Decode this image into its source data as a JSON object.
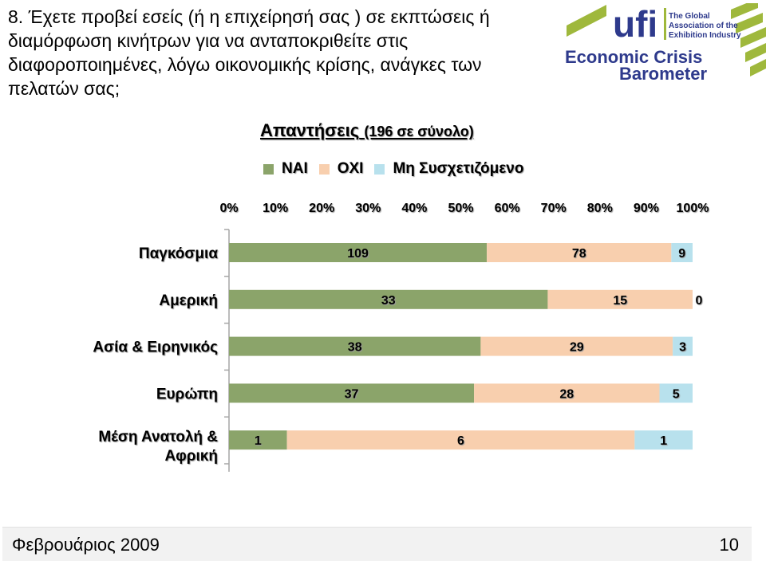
{
  "question": "8. Έχετε προβεί εσείς (ή η επιχείρησή σας ) σε εκπτώσεις ή διαμόρφωση κινήτρων για να ανταποκριθείτε στις διαφοροποιημένες, λόγω οικονομικής κρίσης, ανάγκες των πελατών σας;",
  "logo": {
    "ufi": "ufi",
    "tagline_1": "The Global",
    "tagline_2": "Association of the",
    "tagline_3": "Exhibition Industry",
    "line_1": "Economic Crisis",
    "line_2": "Barometer"
  },
  "chart_title": {
    "main": "Απαντήσεις",
    "sub": "(196 σε σύνολο)"
  },
  "chart_data": {
    "type": "bar",
    "orientation": "horizontal",
    "stacked": "percent",
    "categories": [
      "Παγκόσμια",
      "Αμερική",
      "Ασία & Ειρηνικός",
      "Ευρώπη",
      "Μέση Ανατολή & Αφρική"
    ],
    "series": [
      {
        "name": "ΝΑΙ",
        "values": [
          109,
          33,
          38,
          37,
          1
        ],
        "color": "#8ba46a"
      },
      {
        "name": "ΟΧΙ",
        "values": [
          78,
          15,
          29,
          28,
          6
        ],
        "color": "#f8cfae"
      },
      {
        "name": "Μη Συσχετιζόμενο",
        "values": [
          9,
          0,
          3,
          5,
          1
        ],
        "color": "#b8e1ed"
      }
    ],
    "x_ticks": [
      "0%",
      "10%",
      "20%",
      "30%",
      "40%",
      "50%",
      "60%",
      "70%",
      "80%",
      "90%",
      "100%"
    ],
    "xlim": [
      0,
      100
    ],
    "legend_position": "top"
  },
  "footer": {
    "date": "Φεβρουάριος 2009",
    "page": "10"
  }
}
